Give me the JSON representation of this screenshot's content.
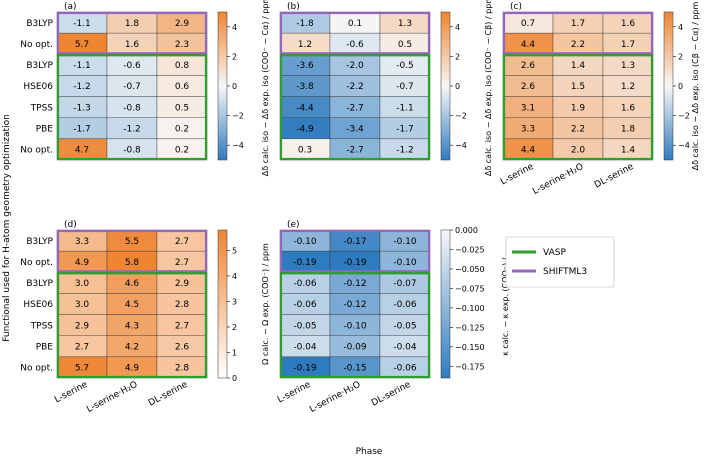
{
  "figure": {
    "ylabel": "Functional used for H-atom geometry optimization",
    "xlabel": "Phase",
    "legend": [
      {
        "label": "VASP",
        "color": "#2ca02c"
      },
      {
        "label": "SHIFTML3",
        "color": "#9467bd"
      }
    ],
    "x_categories": [
      "L-serine",
      "L-serine·H₂O",
      "DL-serine"
    ],
    "colors": {
      "positive": "#ee8533",
      "negative": "#2f7bbf",
      "neutral": "#f7f7f7",
      "vasp_box": "#2ca02c",
      "shiftml_box": "#9467bd"
    }
  },
  "chart_data": [
    {
      "type": "heatmap",
      "panel": "(a)",
      "rows": [
        "B3LYP",
        "No opt.",
        "B3LYP",
        "HSE06",
        "TPSS",
        "PBE",
        "No opt."
      ],
      "columns": [
        "L-serine",
        "L-serine·H₂O",
        "DL-serine"
      ],
      "values": [
        [
          -1.1,
          1.8,
          2.9
        ],
        [
          5.7,
          1.6,
          2.3
        ],
        [
          -1.1,
          -0.6,
          0.8
        ],
        [
          -1.2,
          -0.7,
          0.6
        ],
        [
          -1.3,
          -0.8,
          0.5
        ],
        [
          -1.7,
          -1.2,
          0.2
        ],
        [
          4.7,
          -0.8,
          0.2
        ]
      ],
      "colormap": "diverging",
      "vmin": -5,
      "vmax": 5,
      "colorbar_ticks": [
        "−4",
        "−2",
        "0",
        "2",
        "4"
      ],
      "colorbar_label": "Δδ calc. iso − Δδ exp. iso (COO⁻ − Cα) / ppm",
      "groups": [
        "SHIFTML3: B3LYP, No opt.",
        "VASP: B3LYP, HSE06, TPSS, PBE, No opt."
      ]
    },
    {
      "type": "heatmap",
      "panel": "(b)",
      "rows": [
        "B3LYP",
        "No opt.",
        "B3LYP",
        "HSE06",
        "TPSS",
        "PBE",
        "No opt."
      ],
      "columns": [
        "L-serine",
        "L-serine·H₂O",
        "DL-serine"
      ],
      "values": [
        [
          -1.8,
          0.1,
          1.3
        ],
        [
          1.2,
          -0.6,
          0.5
        ],
        [
          -3.6,
          -2.0,
          -0.5
        ],
        [
          -3.8,
          -2.2,
          -0.7
        ],
        [
          -4.4,
          -2.7,
          -1.1
        ],
        [
          -4.9,
          -3.4,
          -1.7
        ],
        [
          0.3,
          -2.7,
          -1.2
        ]
      ],
      "colormap": "diverging",
      "vmin": -5,
      "vmax": 5,
      "colorbar_ticks": [
        "−4",
        "−2",
        "0",
        "2",
        "4"
      ],
      "colorbar_label": "Δδ calc. iso − Δδ exp. iso (COO⁻ − Cβ) / ppm"
    },
    {
      "type": "heatmap",
      "panel": "(c)",
      "rows": [
        "B3LYP",
        "No opt.",
        "B3LYP",
        "HSE06",
        "TPSS",
        "PBE",
        "No opt."
      ],
      "columns": [
        "L-serine",
        "L-serine·H₂O",
        "DL-serine"
      ],
      "values": [
        [
          0.7,
          1.7,
          1.6
        ],
        [
          4.4,
          2.2,
          1.7
        ],
        [
          2.6,
          1.4,
          1.3
        ],
        [
          2.6,
          1.5,
          1.2
        ],
        [
          3.1,
          1.9,
          1.6
        ],
        [
          3.3,
          2.2,
          1.8
        ],
        [
          4.4,
          2.0,
          1.4
        ]
      ],
      "colormap": "diverging",
      "vmin": -5,
      "vmax": 5,
      "colorbar_ticks": [
        "−4",
        "−2",
        "0",
        "2",
        "4"
      ],
      "colorbar_label": "Δδ calc. iso − Δδ exp. iso (Cβ − Cα) / ppm"
    },
    {
      "type": "heatmap",
      "panel": "(d)",
      "rows": [
        "B3LYP",
        "No opt.",
        "B3LYP",
        "HSE06",
        "TPSS",
        "PBE",
        "No opt."
      ],
      "columns": [
        "L-serine",
        "L-serine·H₂O",
        "DL-serine"
      ],
      "values": [
        [
          3.3,
          5.5,
          2.7
        ],
        [
          4.9,
          5.8,
          2.7
        ],
        [
          3.0,
          4.6,
          2.9
        ],
        [
          3.0,
          4.5,
          2.8
        ],
        [
          2.9,
          4.3,
          2.7
        ],
        [
          2.7,
          4.2,
          2.6
        ],
        [
          5.7,
          4.9,
          2.8
        ]
      ],
      "colormap": "sequential-orange",
      "vmin": 0,
      "vmax": 5.8,
      "colorbar_ticks": [
        "0",
        "1",
        "2",
        "3",
        "4",
        "5"
      ],
      "colorbar_label": "Ω calc. − Ω exp. (COO⁻) / ppm"
    },
    {
      "type": "heatmap",
      "panel": "(e)",
      "rows": [
        "B3LYP",
        "No opt.",
        "B3LYP",
        "HSE06",
        "TPSS",
        "PBE",
        "No opt."
      ],
      "columns": [
        "L-serine",
        "L-serine·H₂O",
        "DL-serine"
      ],
      "values": [
        [
          -0.1,
          -0.17,
          -0.1
        ],
        [
          -0.19,
          -0.19,
          -0.1
        ],
        [
          -0.06,
          -0.12,
          -0.07
        ],
        [
          -0.06,
          -0.12,
          -0.06
        ],
        [
          -0.05,
          -0.1,
          -0.05
        ],
        [
          -0.04,
          -0.09,
          -0.04
        ],
        [
          -0.19,
          -0.15,
          -0.06
        ]
      ],
      "display": [
        [
          "-0.10",
          "-0.17",
          "-0.10"
        ],
        [
          "-0.19",
          "-0.19",
          "-0.10"
        ],
        [
          "-0.06",
          "-0.12",
          "-0.07"
        ],
        [
          "-0.06",
          "-0.12",
          "-0.06"
        ],
        [
          "-0.05",
          "-0.10",
          "-0.05"
        ],
        [
          "-0.04",
          "-0.09",
          "-0.04"
        ],
        [
          "-0.19",
          "-0.15",
          "-0.06"
        ]
      ],
      "colormap": "sequential-blue",
      "vmin": -0.19,
      "vmax": 0,
      "colorbar_ticks": [
        "0.000",
        "−0.025",
        "−0.050",
        "−0.075",
        "−0.100",
        "−0.125",
        "−0.150",
        "−0.175"
      ],
      "colorbar_label": "κ calc. − κ exp. (COO⁻) / -"
    }
  ]
}
